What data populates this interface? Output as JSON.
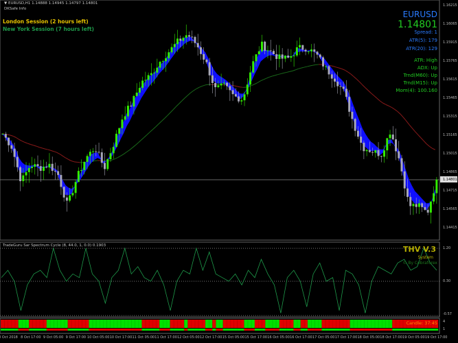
{
  "header": {
    "symbol_line": "▼ EURUSD,H1  1.14888  1.14945  1.14797  1.14801",
    "indicator_name": "DKSafe Info"
  },
  "sessions": {
    "london": "London Session (2 hours left)",
    "new_york": "New York Session (7 hours left)",
    "london_color": "#e6c200",
    "new_york_color": "#1f9a4a"
  },
  "info_panel": {
    "symbol": "EURUSD",
    "price": "1.14801",
    "spread": "Spread: 1",
    "atr5": "ATR(5): 179",
    "atr20": "ATR(20): 129",
    "atr_state": "ATR: High",
    "adx": "ADX: Up",
    "trend_m60": "Trnd(M60): Up",
    "trend_m15": "Trnd(M15): Up",
    "momentum": "Mom(4): 100.160"
  },
  "oscillator": {
    "label": "TradeGuru Sar Spectrum Cycle (8, 44.0, 1, 0.0) 0.1903",
    "brand_title": "THV V.3",
    "brand_system": "System",
    "brand_author": "© By Cobraforex",
    "axis_labels": [
      "1.20",
      "0.30",
      "-0.57"
    ]
  },
  "strength_bar": {
    "candle_timer": "Candle: 37:45",
    "axis_labels": [
      "4",
      "1"
    ],
    "sequence": "RRRRRGGGRRRRRGGGGGGRRRRRRGGGGGGGGGGGGGGGRRRRRGGGRRRRGRRRRRGGRGGRRRRRRGGGRRRGGGGRRRRGGRRGGGGRRRRRRRRGGGGGGGGGGGGRRRRRRRRRRRRR",
    "colors": {
      "G": "#00e000",
      "R": "#e00000"
    }
  },
  "price_axis": {
    "labels": [
      "1.16215",
      "1.16065",
      "1.15915",
      "1.15765",
      "1.15615",
      "1.15465",
      "1.15315",
      "1.15165",
      "1.15015",
      "1.14865",
      "1.14715",
      "1.14565",
      "1.14415"
    ],
    "current_price": "1.14801"
  },
  "time_axis": [
    "8 Oct 2018",
    "8 Oct 17:00",
    "9 Oct 05:00",
    "9 Oct 17:00",
    "10 Oct 05:00",
    "10 Oct 17:00",
    "11 Oct 05:00",
    "11 Oct 17:00",
    "12 Oct 05:00",
    "12 Oct 17:00",
    "15 Oct 05:00",
    "15 Oct 17:00",
    "16 Oct 05:00",
    "16 Oct 17:00",
    "17 Oct 05:00",
    "17 Oct 17:00",
    "18 Oct 05:00",
    "18 Oct 17:00",
    "19 Oct 05:00",
    "19 Oct 17:00"
  ],
  "colors": {
    "background": "#000000",
    "bull_candle": "#33ee00",
    "bear_candle": "#a8a8b8",
    "band": "#1010ff",
    "ma_up": "#1a6a1a",
    "ma_down": "#8a1a1a",
    "oscillator": "#1e9a4a",
    "info_blue": "#2a7bff",
    "info_green": "#22cc22",
    "brand": "#b8b000",
    "timer": "#ff8c00"
  },
  "chart_data": {
    "type": "candlestick",
    "symbol": "EURUSD",
    "timeframe": "H1",
    "ylim": [
      1.1415,
      1.1625
    ],
    "close_path": [
      1.15173,
      1.15062,
      1.14784,
      1.14923,
      1.14895,
      1.14923,
      1.14839,
      1.14589,
      1.14811,
      1.14978,
      1.15062,
      1.14895,
      1.1509,
      1.15313,
      1.15424,
      1.15591,
      1.15647,
      1.15758,
      1.15842,
      1.15925,
      1.15981,
      1.15898,
      1.15758,
      1.15535,
      1.15563,
      1.1548,
      1.15452,
      1.1573,
      1.15898,
      1.15842,
      1.15786,
      1.15786,
      1.1587,
      1.1587,
      1.15814,
      1.15703,
      1.15619,
      1.15508,
      1.15257,
      1.15062,
      1.15034,
      1.15006,
      1.15201,
      1.14951,
      1.14589,
      1.14589,
      1.14533,
      1.14801
    ],
    "oscillator_values": [
      0.4,
      0.6,
      0.3,
      -0.5,
      0.2,
      0.5,
      0.6,
      0.4,
      1.2,
      0.6,
      0.3,
      0.5,
      0.4,
      1.2,
      0.5,
      0.3,
      -0.3,
      0.4,
      0.6,
      1.2,
      0.5,
      0.7,
      0.4,
      0.3,
      0.6,
      0.2,
      -0.5,
      0.3,
      0.6,
      0.5,
      1.2,
      0.6,
      1.1,
      0.5,
      0.4,
      0.3,
      0.5,
      0.2,
      0.6,
      0.4,
      0.9,
      0.5,
      0.2,
      -0.57,
      0.4,
      0.6,
      0.3,
      -0.4,
      0.5,
      0.8,
      0.3,
      0.4,
      -0.5,
      0.6,
      0.5,
      0.2,
      -0.57,
      0.3,
      0.7,
      0.6,
      0.5,
      0.8,
      0.9,
      0.6,
      0.7,
      1.2,
      0.8,
      0.6
    ]
  }
}
